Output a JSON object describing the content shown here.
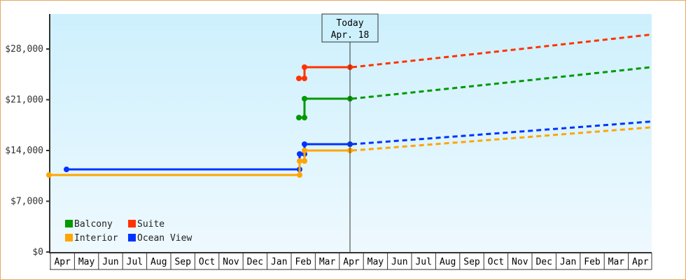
{
  "chart_data": {
    "type": "line",
    "title": "",
    "xlabel": "",
    "ylabel": "",
    "ylim": [
      0,
      32000
    ],
    "yticks": [
      "$0",
      "$7,000",
      "$14,000",
      "$21,000",
      "$28,000"
    ],
    "x_tick_labels": [
      "Apr",
      "May",
      "Jun",
      "Jul",
      "Aug",
      "Sep",
      "Oct",
      "Nov",
      "Dec",
      "Jan",
      "Feb",
      "Mar",
      "Apr",
      "May",
      "Jun",
      "Jul",
      "Aug",
      "Sep",
      "Oct",
      "Nov",
      "Dec",
      "Jan",
      "Feb",
      "Mar",
      "Apr"
    ],
    "annotation": {
      "label_line1": "Today",
      "label_line2": "Apr. 18"
    },
    "legend": [
      "Balcony",
      "Suite",
      "Interior",
      "Ocean View"
    ],
    "series": [
      {
        "name": "Suite",
        "color": "#ff3300",
        "historical": [
          {
            "x": "Feb",
            "y": 24000
          },
          {
            "x": "Feb",
            "y": 24000
          },
          {
            "x": "Feb",
            "y": 25000
          },
          {
            "x": "Apr 18",
            "y": 25000
          }
        ],
        "projected_end": 30000
      },
      {
        "name": "Balcony",
        "color": "#009900",
        "historical": [
          {
            "x": "Feb",
            "y": 18500
          },
          {
            "x": "Feb",
            "y": 18500
          },
          {
            "x": "Feb",
            "y": 21000
          },
          {
            "x": "Apr 18",
            "y": 21000
          }
        ],
        "projected_end": 25500
      },
      {
        "name": "Ocean View",
        "color": "#0033ff",
        "historical": [
          {
            "x": "May",
            "y": 11500
          },
          {
            "x": "Feb",
            "y": 11500
          },
          {
            "x": "Feb",
            "y": 13500
          },
          {
            "x": "Feb",
            "y": 13500
          },
          {
            "x": "Feb",
            "y": 15000
          },
          {
            "x": "Apr 18",
            "y": 15000
          }
        ],
        "projected_end": 18000
      },
      {
        "name": "Interior",
        "color": "#ffa500",
        "historical": [
          {
            "x": "Apr",
            "y": 10700
          },
          {
            "x": "Feb",
            "y": 10700
          },
          {
            "x": "Feb",
            "y": 12500
          },
          {
            "x": "Feb",
            "y": 14000
          },
          {
            "x": "Apr 18",
            "y": 14000
          }
        ],
        "projected_end": 17200
      }
    ]
  }
}
